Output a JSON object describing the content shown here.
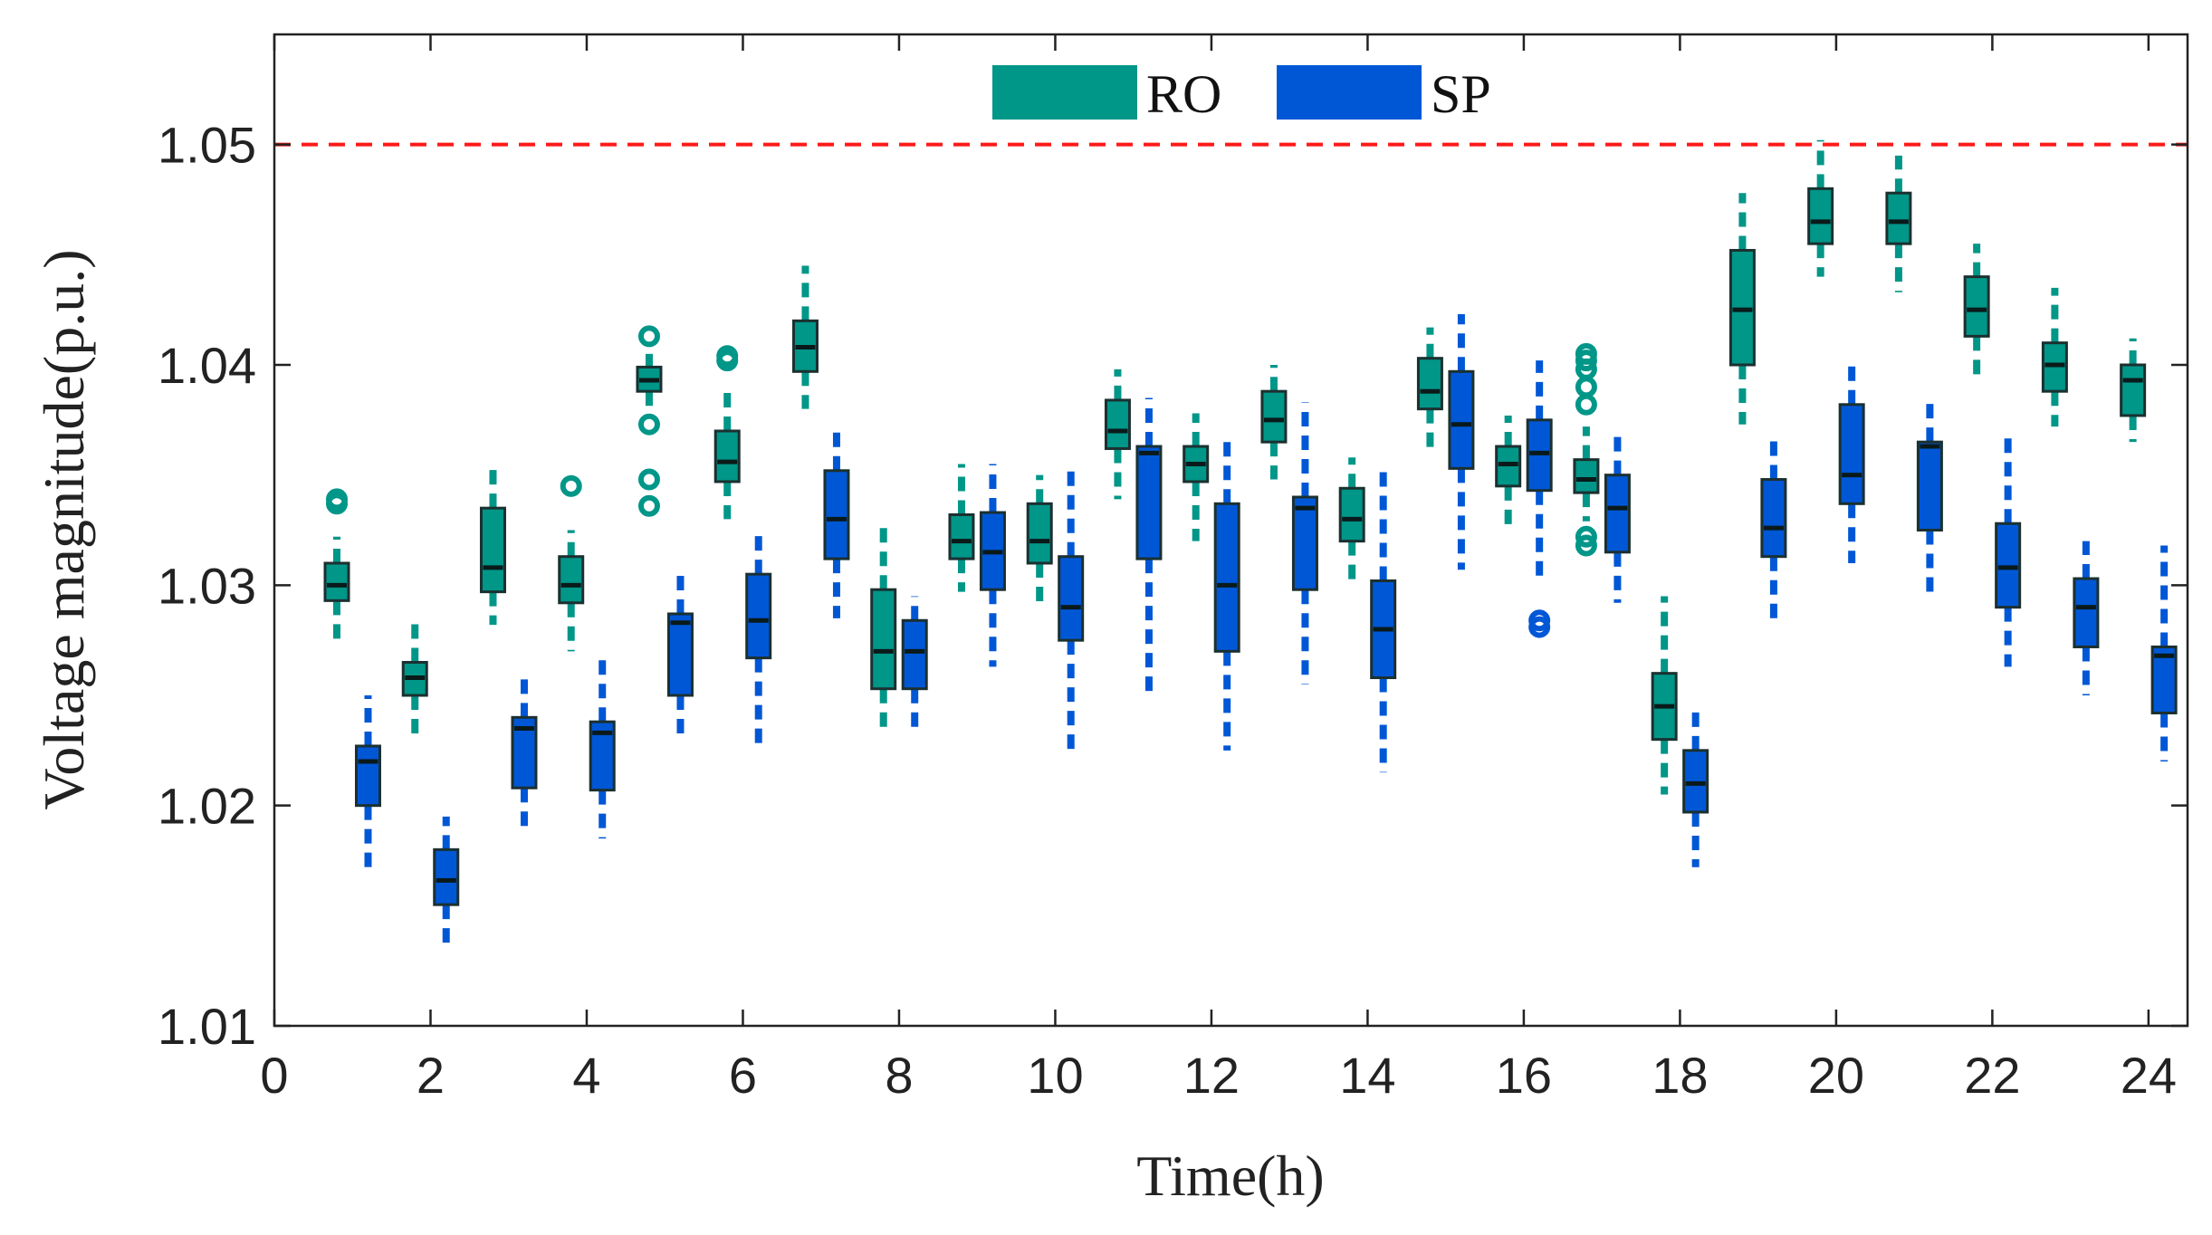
{
  "chart_data": {
    "type": "box",
    "xlabel": "Time(h)",
    "ylabel": "Voltage magnitude(p.u.)",
    "xlim": [
      0,
      24.5
    ],
    "ylim": [
      1.01,
      1.055
    ],
    "xticks": [
      0,
      2,
      4,
      6,
      8,
      10,
      12,
      14,
      16,
      18,
      20,
      22,
      24
    ],
    "yticks": [
      1.01,
      1.02,
      1.03,
      1.04,
      1.05
    ],
    "xtick_labels": [
      "0",
      "2",
      "4",
      "6",
      "8",
      "10",
      "12",
      "14",
      "16",
      "18",
      "20",
      "22",
      "24"
    ],
    "ytick_labels": [
      "1.01",
      "1.02",
      "1.03",
      "1.04",
      "1.05"
    ],
    "reference_line": {
      "y": 1.05,
      "style": "dashed",
      "color": "#ff1a1a"
    },
    "legend": {
      "position": "top-center",
      "entries": [
        "RO",
        "SP"
      ]
    },
    "colors": {
      "RO": "#009688",
      "SP": "#0057d6",
      "outline": "#1b3030"
    },
    "series": [
      {
        "name": "RO",
        "boxes": [
          {
            "x": 0.8,
            "whislo": 1.0273,
            "q1": 1.0293,
            "med": 1.03,
            "q3": 1.031,
            "whishi": 1.0322,
            "outliers": [
              1.0337,
              1.0339
            ]
          },
          {
            "x": 1.8,
            "whislo": 1.023,
            "q1": 1.025,
            "med": 1.0258,
            "q3": 1.0265,
            "whishi": 1.0283,
            "outliers": []
          },
          {
            "x": 2.8,
            "whislo": 1.0282,
            "q1": 1.0297,
            "med": 1.0308,
            "q3": 1.0335,
            "whishi": 1.0353,
            "outliers": []
          },
          {
            "x": 3.8,
            "whislo": 1.027,
            "q1": 1.0292,
            "med": 1.03,
            "q3": 1.0313,
            "whishi": 1.0325,
            "outliers": [
              1.0345
            ]
          },
          {
            "x": 4.8,
            "whislo": 1.0381,
            "q1": 1.0388,
            "med": 1.0393,
            "q3": 1.0399,
            "whishi": 1.0405,
            "outliers": [
              1.0413,
              1.0373,
              1.0348,
              1.0336
            ]
          },
          {
            "x": 5.8,
            "whislo": 1.033,
            "q1": 1.0347,
            "med": 1.0356,
            "q3": 1.037,
            "whishi": 1.0388,
            "outliers": [
              1.0402,
              1.0404
            ]
          },
          {
            "x": 6.8,
            "whislo": 1.038,
            "q1": 1.0397,
            "med": 1.0408,
            "q3": 1.042,
            "whishi": 1.0445,
            "outliers": []
          },
          {
            "x": 7.8,
            "whislo": 1.0235,
            "q1": 1.0253,
            "med": 1.027,
            "q3": 1.0298,
            "whishi": 1.0327,
            "outliers": []
          },
          {
            "x": 8.8,
            "whislo": 1.0297,
            "q1": 1.0312,
            "med": 1.032,
            "q3": 1.0332,
            "whishi": 1.0355,
            "outliers": []
          },
          {
            "x": 9.8,
            "whislo": 1.0292,
            "q1": 1.031,
            "med": 1.032,
            "q3": 1.0337,
            "whishi": 1.035,
            "outliers": []
          },
          {
            "x": 10.8,
            "whislo": 1.0339,
            "q1": 1.0362,
            "med": 1.037,
            "q3": 1.0384,
            "whishi": 1.0398,
            "outliers": []
          },
          {
            "x": 11.8,
            "whislo": 1.032,
            "q1": 1.0347,
            "med": 1.0355,
            "q3": 1.0363,
            "whishi": 1.0378,
            "outliers": []
          },
          {
            "x": 12.8,
            "whislo": 1.0348,
            "q1": 1.0365,
            "med": 1.0375,
            "q3": 1.0388,
            "whishi": 1.04,
            "outliers": []
          },
          {
            "x": 13.8,
            "whislo": 1.0302,
            "q1": 1.032,
            "med": 1.033,
            "q3": 1.0344,
            "whishi": 1.0358,
            "outliers": []
          },
          {
            "x": 14.8,
            "whislo": 1.0362,
            "q1": 1.038,
            "med": 1.0388,
            "q3": 1.0403,
            "whishi": 1.0417,
            "outliers": []
          },
          {
            "x": 15.8,
            "whislo": 1.0326,
            "q1": 1.0345,
            "med": 1.0355,
            "q3": 1.0363,
            "whishi": 1.0377,
            "outliers": []
          },
          {
            "x": 16.8,
            "whislo": 1.0329,
            "q1": 1.0342,
            "med": 1.0348,
            "q3": 1.0357,
            "whishi": 1.0372,
            "outliers": [
              1.0405,
              1.0402,
              1.0398,
              1.039,
              1.0382,
              1.0318,
              1.0322
            ]
          },
          {
            "x": 17.8,
            "whislo": 1.0205,
            "q1": 1.023,
            "med": 1.0245,
            "q3": 1.026,
            "whishi": 1.0295,
            "outliers": []
          },
          {
            "x": 18.8,
            "whislo": 1.0373,
            "q1": 1.04,
            "med": 1.0425,
            "q3": 1.0452,
            "whishi": 1.0478,
            "outliers": []
          },
          {
            "x": 19.8,
            "whislo": 1.044,
            "q1": 1.0455,
            "med": 1.0465,
            "q3": 1.048,
            "whishi": 1.0502,
            "outliers": []
          },
          {
            "x": 20.8,
            "whislo": 1.0433,
            "q1": 1.0455,
            "med": 1.0465,
            "q3": 1.0478,
            "whishi": 1.0495,
            "outliers": []
          },
          {
            "x": 21.8,
            "whislo": 1.0393,
            "q1": 1.0413,
            "med": 1.0425,
            "q3": 1.044,
            "whishi": 1.0455,
            "outliers": []
          },
          {
            "x": 22.8,
            "whislo": 1.0372,
            "q1": 1.0388,
            "med": 1.04,
            "q3": 1.041,
            "whishi": 1.0435,
            "outliers": []
          },
          {
            "x": 23.8,
            "whislo": 1.0365,
            "q1": 1.0377,
            "med": 1.0393,
            "q3": 1.04,
            "whishi": 1.0412,
            "outliers": []
          }
        ]
      },
      {
        "name": "SP",
        "boxes": [
          {
            "x": 1.2,
            "whislo": 1.017,
            "q1": 1.02,
            "med": 1.022,
            "q3": 1.0227,
            "whishi": 1.025,
            "outliers": []
          },
          {
            "x": 2.2,
            "whislo": 1.0135,
            "q1": 1.0155,
            "med": 1.0166,
            "q3": 1.018,
            "whishi": 1.0195,
            "outliers": []
          },
          {
            "x": 3.2,
            "whislo": 1.0188,
            "q1": 1.0208,
            "med": 1.0235,
            "q3": 1.024,
            "whishi": 1.0258,
            "outliers": []
          },
          {
            "x": 4.2,
            "whislo": 1.0185,
            "q1": 1.0207,
            "med": 1.0233,
            "q3": 1.0238,
            "whishi": 1.027,
            "outliers": []
          },
          {
            "x": 5.2,
            "whislo": 1.023,
            "q1": 1.025,
            "med": 1.0283,
            "q3": 1.0287,
            "whishi": 1.0305,
            "outliers": []
          },
          {
            "x": 6.2,
            "whislo": 1.0225,
            "q1": 1.0267,
            "med": 1.0284,
            "q3": 1.0305,
            "whishi": 1.0325,
            "outliers": []
          },
          {
            "x": 7.2,
            "whislo": 1.0285,
            "q1": 1.0312,
            "med": 1.033,
            "q3": 1.0352,
            "whishi": 1.0372,
            "outliers": []
          },
          {
            "x": 8.2,
            "whislo": 1.0233,
            "q1": 1.0253,
            "med": 1.027,
            "q3": 1.0284,
            "whishi": 1.0295,
            "outliers": []
          },
          {
            "x": 9.2,
            "whislo": 1.0263,
            "q1": 1.0298,
            "med": 1.0315,
            "q3": 1.0333,
            "whishi": 1.0355,
            "outliers": []
          },
          {
            "x": 10.2,
            "whislo": 1.0225,
            "q1": 1.0275,
            "med": 1.029,
            "q3": 1.0313,
            "whishi": 1.0355,
            "outliers": []
          },
          {
            "x": 11.2,
            "whislo": 1.025,
            "q1": 1.0312,
            "med": 1.036,
            "q3": 1.0363,
            "whishi": 1.0385,
            "outliers": []
          },
          {
            "x": 12.2,
            "whislo": 1.0225,
            "q1": 1.027,
            "med": 1.03,
            "q3": 1.0337,
            "whishi": 1.0368,
            "outliers": []
          },
          {
            "x": 13.2,
            "whislo": 1.0255,
            "q1": 1.0298,
            "med": 1.0335,
            "q3": 1.034,
            "whishi": 1.0383,
            "outliers": []
          },
          {
            "x": 14.2,
            "whislo": 1.0215,
            "q1": 1.0258,
            "med": 1.028,
            "q3": 1.0302,
            "whishi": 1.0355,
            "outliers": []
          },
          {
            "x": 15.2,
            "whislo": 1.0307,
            "q1": 1.0353,
            "med": 1.0373,
            "q3": 1.0397,
            "whishi": 1.0423,
            "outliers": []
          },
          {
            "x": 16.2,
            "whislo": 1.0303,
            "q1": 1.0343,
            "med": 1.036,
            "q3": 1.0375,
            "whishi": 1.0402,
            "outliers": [
              1.0284,
              1.0281
            ]
          },
          {
            "x": 17.2,
            "whislo": 1.0292,
            "q1": 1.0315,
            "med": 1.0335,
            "q3": 1.035,
            "whishi": 1.037,
            "outliers": []
          },
          {
            "x": 18.2,
            "whislo": 1.0172,
            "q1": 1.0197,
            "med": 1.021,
            "q3": 1.0225,
            "whishi": 1.0245,
            "outliers": []
          },
          {
            "x": 19.2,
            "whislo": 1.0285,
            "q1": 1.0313,
            "med": 1.0326,
            "q3": 1.0348,
            "whishi": 1.0367,
            "outliers": []
          },
          {
            "x": 20.2,
            "whislo": 1.031,
            "q1": 1.0337,
            "med": 1.035,
            "q3": 1.0382,
            "whishi": 1.0402,
            "outliers": []
          },
          {
            "x": 21.2,
            "whislo": 1.0293,
            "q1": 1.0325,
            "med": 1.0363,
            "q3": 1.0365,
            "whishi": 1.0383,
            "outliers": []
          },
          {
            "x": 22.2,
            "whislo": 1.0263,
            "q1": 1.029,
            "med": 1.0308,
            "q3": 1.0328,
            "whishi": 1.0368,
            "outliers": []
          },
          {
            "x": 23.2,
            "whislo": 1.025,
            "q1": 1.0272,
            "med": 1.029,
            "q3": 1.0303,
            "whishi": 1.032,
            "outliers": []
          },
          {
            "x": 24.2,
            "whislo": 1.022,
            "q1": 1.0242,
            "med": 1.0268,
            "q3": 1.0272,
            "whishi": 1.0318,
            "outliers": []
          }
        ]
      }
    ]
  }
}
